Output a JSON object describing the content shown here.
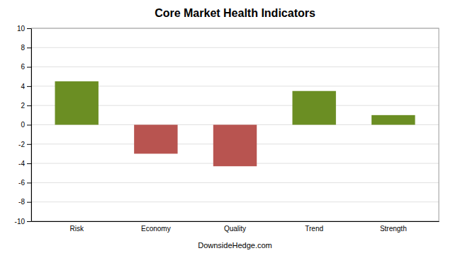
{
  "chart_data": {
    "type": "bar",
    "title": "Core Market Health Indicators",
    "categories": [
      "Risk",
      "Economy",
      "Quality",
      "Trend",
      "Strength"
    ],
    "values": [
      4.5,
      -3.0,
      -4.3,
      3.5,
      1.0
    ],
    "colors": [
      "#6b8e23",
      "#b85450",
      "#b85450",
      "#6b8e23",
      "#6b8e23"
    ],
    "ylim": [
      -10,
      10
    ],
    "yticks": [
      -10,
      -8,
      -6,
      -4,
      -2,
      0,
      2,
      4,
      6,
      8,
      10
    ],
    "xlabel": "DownsideHedge.com",
    "grid": true
  }
}
